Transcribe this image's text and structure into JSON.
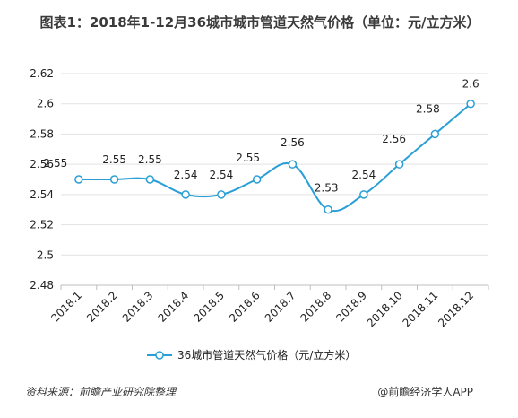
{
  "title": "图表1：2018年1-12月36城市城市管道天然气价格（单位：元/立方米）",
  "footer": {
    "source": "资料来源：前瞻产业研究院整理",
    "brand": "@前瞻经济学人APP"
  },
  "colors": {
    "series": "#2a9fd6",
    "grid": "#e2e2e2",
    "axis": "#bfbfbf"
  },
  "chart_data": {
    "type": "line",
    "title": "图表1：2018年1-12月36城市城市管道天然气价格（单位：元/立方米）",
    "xlabel": "",
    "ylabel": "",
    "categories": [
      "2018.1",
      "2018.2",
      "2018.3",
      "2018.4",
      "2018.5",
      "2018.6",
      "2018.7",
      "2018.8",
      "2018.9",
      "2018.10",
      "2018.11",
      "2018.12"
    ],
    "series": [
      {
        "name": "36城市管道天然气价格（元/立方米）",
        "values": [
          2.55,
          2.55,
          2.55,
          2.54,
          2.54,
          2.55,
          2.56,
          2.53,
          2.54,
          2.56,
          2.58,
          2.6
        ]
      }
    ],
    "ylim": [
      2.48,
      2.62
    ],
    "yticks": [
      "2.48",
      "2.5",
      "2.52",
      "2.54",
      "2.56",
      "2.58",
      "2.6",
      "2.62"
    ],
    "grid": "horizontal",
    "legend_position": "bottom"
  }
}
